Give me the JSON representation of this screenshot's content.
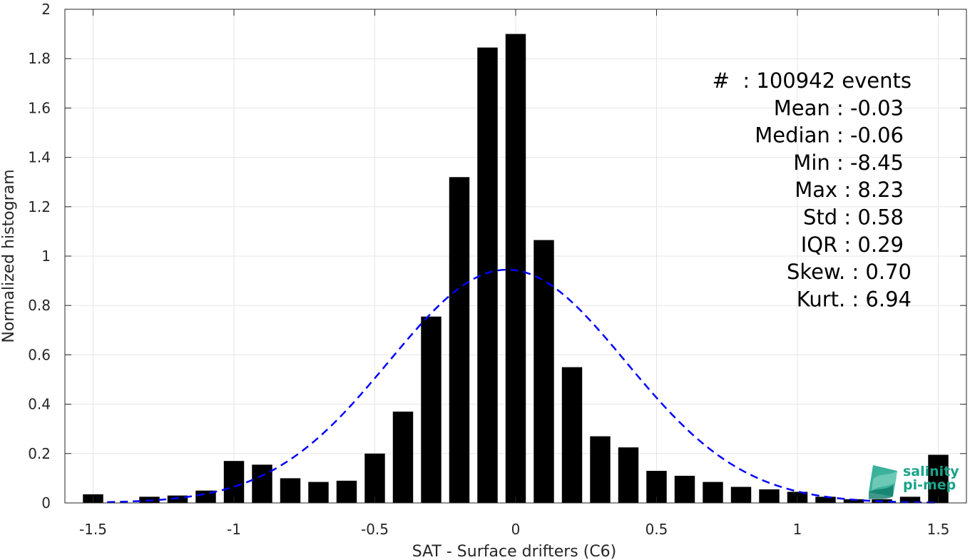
{
  "chart_data": {
    "type": "bar",
    "xlabel": "SAT - Surface drifters (C6)",
    "ylabel": "Normalized histogram",
    "xlim": [
      -1.6,
      1.6
    ],
    "ylim": [
      0,
      2
    ],
    "grid": true,
    "x_ticks": [
      "-1.5",
      "-1",
      "-0.5",
      "0",
      "0.5",
      "1",
      "1.5"
    ],
    "x_tick_values": [
      -1.5,
      -1,
      -0.5,
      0,
      0.5,
      1,
      1.5
    ],
    "y_ticks": [
      "0",
      "0.2",
      "0.4",
      "0.6",
      "0.8",
      "1",
      "1.2",
      "1.4",
      "1.6",
      "1.8",
      "2"
    ],
    "y_tick_values": [
      0,
      0.2,
      0.4,
      0.6,
      0.8,
      1,
      1.2,
      1.4,
      1.6,
      1.8,
      2
    ],
    "bar_width": 0.072,
    "bars": [
      {
        "x": -1.5,
        "y": 0.035
      },
      {
        "x": -1.3,
        "y": 0.025
      },
      {
        "x": -1.2,
        "y": 0.03
      },
      {
        "x": -1.1,
        "y": 0.05
      },
      {
        "x": -1.0,
        "y": 0.17
      },
      {
        "x": -0.9,
        "y": 0.155
      },
      {
        "x": -0.8,
        "y": 0.1
      },
      {
        "x": -0.7,
        "y": 0.085
      },
      {
        "x": -0.6,
        "y": 0.09
      },
      {
        "x": -0.5,
        "y": 0.2
      },
      {
        "x": -0.4,
        "y": 0.37
      },
      {
        "x": -0.3,
        "y": 0.755
      },
      {
        "x": -0.2,
        "y": 1.32
      },
      {
        "x": -0.1,
        "y": 1.845
      },
      {
        "x": 0.0,
        "y": 1.9
      },
      {
        "x": 0.1,
        "y": 1.065
      },
      {
        "x": 0.2,
        "y": 0.55
      },
      {
        "x": 0.3,
        "y": 0.27
      },
      {
        "x": 0.4,
        "y": 0.225
      },
      {
        "x": 0.5,
        "y": 0.13
      },
      {
        "x": 0.6,
        "y": 0.11
      },
      {
        "x": 0.7,
        "y": 0.085
      },
      {
        "x": 0.8,
        "y": 0.065
      },
      {
        "x": 0.9,
        "y": 0.055
      },
      {
        "x": 1.0,
        "y": 0.045
      },
      {
        "x": 1.1,
        "y": 0.025
      },
      {
        "x": 1.2,
        "y": 0.015
      },
      {
        "x": 1.3,
        "y": 0.015
      },
      {
        "x": 1.4,
        "y": 0.025
      },
      {
        "x": 1.5,
        "y": 0.195
      }
    ],
    "fit_curve": {
      "type": "gaussian",
      "mean": -0.03,
      "std": 0.42,
      "peak": 0.945,
      "x_range": [
        -1.45,
        1.5
      ],
      "color": "#0000ff",
      "style": "dashed"
    },
    "annotations": [
      "#  : 100942 events",
      "Mean : -0.03",
      "Median : -0.06",
      "Min : -8.45",
      "Max : 8.23",
      "Std : 0.58",
      "IQR : 0.29",
      "Skew. : 0.70",
      "Kurt. : 6.94"
    ],
    "colors": {
      "bars": "#000000",
      "fit": "#0000ff",
      "grid": "#e6e6e6",
      "axis": "#262626",
      "logo": "#1aa38a"
    }
  },
  "logo": {
    "line1": "salinity",
    "line2": "pi-mep"
  }
}
